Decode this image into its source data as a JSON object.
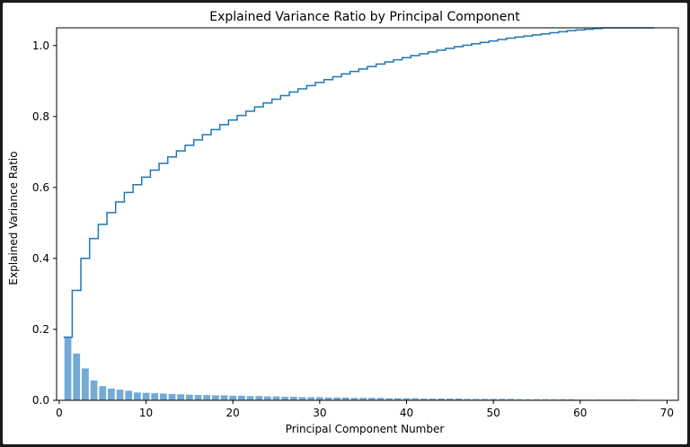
{
  "chart_data": {
    "type": "bar",
    "title": "Explained Variance Ratio by Principal Component",
    "xlabel": "Principal Component Number",
    "ylabel": "Explained Variance Ratio",
    "xlim": [
      -0.3,
      71.3
    ],
    "ylim": [
      0,
      1.05
    ],
    "xticks": [
      0,
      10,
      20,
      30,
      40,
      50,
      60,
      70
    ],
    "yticks": [
      0.0,
      0.2,
      0.4,
      0.6,
      0.8,
      1.0
    ],
    "grid": false,
    "colors": {
      "bars": "#5b9bcf",
      "cumulative_line": "#1f77b4"
    },
    "x": [
      1,
      2,
      3,
      4,
      5,
      6,
      7,
      8,
      9,
      10,
      11,
      12,
      13,
      14,
      15,
      16,
      17,
      18,
      19,
      20,
      21,
      22,
      23,
      24,
      25,
      26,
      27,
      28,
      29,
      30,
      31,
      32,
      33,
      34,
      35,
      36,
      37,
      38,
      39,
      40,
      41,
      42,
      43,
      44,
      45,
      46,
      47,
      48,
      49,
      50,
      51,
      52,
      53,
      54,
      55,
      56,
      57,
      58,
      59,
      60,
      61,
      62,
      63,
      64,
      65,
      66,
      67,
      68
    ],
    "series": [
      {
        "type": "bar",
        "values": [
          0.178,
          0.132,
          0.09,
          0.056,
          0.04,
          0.033,
          0.03,
          0.027,
          0.022,
          0.021,
          0.02,
          0.019,
          0.018,
          0.017,
          0.016,
          0.015,
          0.015,
          0.014,
          0.014,
          0.013,
          0.013,
          0.012,
          0.012,
          0.011,
          0.011,
          0.01,
          0.01,
          0.009,
          0.009,
          0.009,
          0.008,
          0.008,
          0.008,
          0.007,
          0.007,
          0.007,
          0.007,
          0.006,
          0.006,
          0.006,
          0.006,
          0.005,
          0.005,
          0.005,
          0.005,
          0.005,
          0.004,
          0.004,
          0.004,
          0.004,
          0.004,
          0.004,
          0.003,
          0.003,
          0.003,
          0.003,
          0.003,
          0.003,
          0.003,
          0.002,
          0.002,
          0.002,
          0.002,
          0.002,
          0.002,
          0.002,
          0.001,
          0.001
        ]
      },
      {
        "type": "step",
        "values": [
          0.178,
          0.31,
          0.4,
          0.456,
          0.496,
          0.529,
          0.559,
          0.586,
          0.608,
          0.629,
          0.649,
          0.668,
          0.686,
          0.703,
          0.719,
          0.734,
          0.749,
          0.763,
          0.777,
          0.79,
          0.803,
          0.815,
          0.827,
          0.838,
          0.849,
          0.859,
          0.869,
          0.878,
          0.887,
          0.896,
          0.904,
          0.912,
          0.92,
          0.927,
          0.934,
          0.941,
          0.948,
          0.954,
          0.96,
          0.966,
          0.972,
          0.977,
          0.982,
          0.987,
          0.992,
          0.997,
          1.001,
          1.005,
          1.009,
          1.013,
          1.017,
          1.021,
          1.024,
          1.027,
          1.03,
          1.033,
          1.036,
          1.039,
          1.042,
          1.044,
          1.046,
          1.048,
          1.05,
          1.052,
          1.054,
          1.056,
          1.057,
          1.058
        ]
      }
    ]
  }
}
